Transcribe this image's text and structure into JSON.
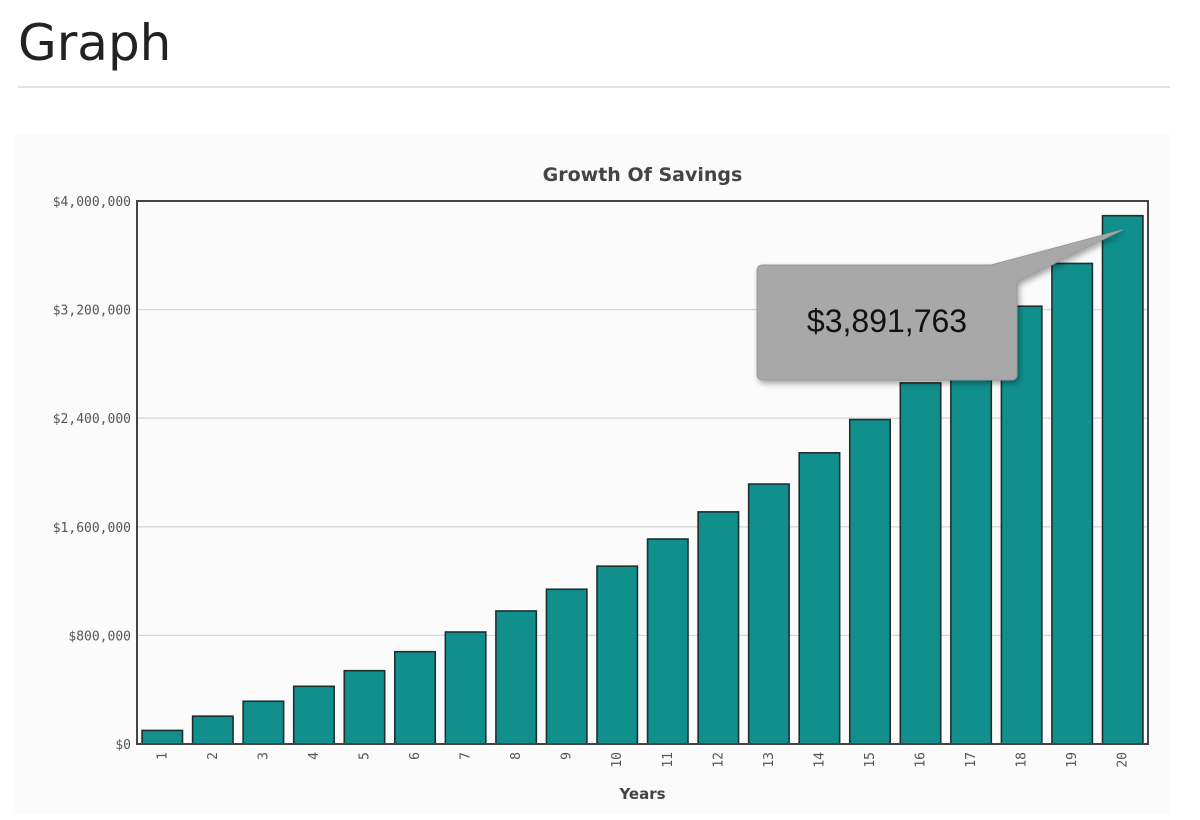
{
  "page": {
    "title": "Graph"
  },
  "chart_data": {
    "type": "bar",
    "title": "Growth Of Savings",
    "xlabel": "Years",
    "ylabel": "",
    "categories": [
      "1",
      "2",
      "3",
      "4",
      "5",
      "6",
      "7",
      "8",
      "9",
      "10",
      "11",
      "12",
      "13",
      "14",
      "15",
      "16",
      "17",
      "18",
      "19",
      "20"
    ],
    "values": [
      100000,
      205000,
      315000,
      425000,
      540000,
      680000,
      825000,
      980000,
      1140000,
      1310000,
      1510000,
      1710000,
      1915000,
      2145000,
      2390000,
      2660000,
      2935000,
      3225000,
      3540000,
      3891763
    ],
    "ylim": [
      0,
      4000000
    ],
    "yticks": [
      0,
      800000,
      1600000,
      2400000,
      3200000,
      4000000
    ],
    "ytick_labels": [
      "$0",
      "$800,000",
      "$1,600,000",
      "$2,400,000",
      "$3,200,000",
      "$4,000,000"
    ],
    "grid": true,
    "colors": {
      "bar_fill": "#108f8c",
      "bar_stroke": "#1f2f2f",
      "grid": "#d7d7d7",
      "axis": "#444444",
      "tooltip_bg": "#a8a8a8"
    },
    "tooltip": {
      "category": "20",
      "text": "$3,891,763"
    }
  }
}
